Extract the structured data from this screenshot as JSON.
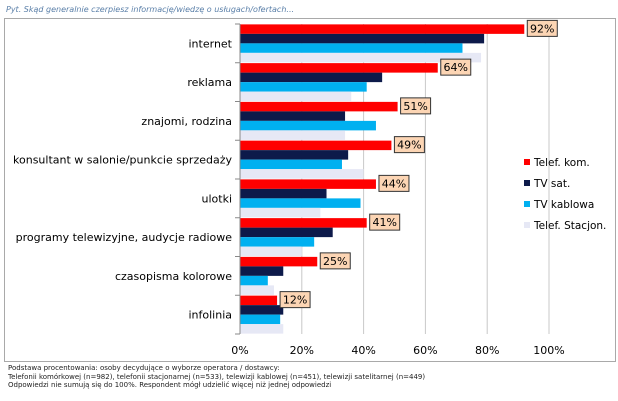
{
  "question": "Pyt. Skąd generalnie czerpiesz informację/wiedzę o usługach/ofertach...",
  "chart_data": {
    "type": "bar",
    "orientation": "horizontal",
    "categories": [
      "internet",
      "reklama",
      "znajomi, rodzina",
      "konsultant w salonie/punkcie  sprzedaży",
      "ulotki",
      "programy telewizyjne,  audycje radiowe",
      "czasopisma kolorowe",
      "infolinia"
    ],
    "series": [
      {
        "name": "Telef. kom.",
        "color": "#ff0000",
        "values": [
          92,
          64,
          51,
          49,
          44,
          41,
          25,
          12
        ]
      },
      {
        "name": "TV sat.",
        "color": "#0d1a4a",
        "values": [
          79,
          46,
          34,
          35,
          28,
          30,
          14,
          14
        ]
      },
      {
        "name": "TV kablowa",
        "color": "#00b0f0",
        "values": [
          72,
          41,
          44,
          33,
          39,
          24,
          9,
          13
        ]
      },
      {
        "name": "Telef. Stacjon.",
        "color": "#e6e8f5",
        "values": [
          78,
          36,
          34,
          40,
          26,
          20,
          11,
          14
        ]
      }
    ],
    "data_labels": [
      "92%",
      "64%",
      "51%",
      "49%",
      "44%",
      "41%",
      "25%",
      "12%"
    ],
    "x_ticks": [
      "0%",
      "20%",
      "40%",
      "60%",
      "80%",
      "100%"
    ],
    "xlim": [
      0,
      100
    ],
    "label_color": "#fcd5b4",
    "legend_position": "right",
    "title": "",
    "xlabel": "",
    "ylabel": ""
  },
  "notes": [
    "Podstawa procentowania: osoby decydujące  o wyborze operatora / dostawcy:",
    "Telefonii komórkowej (n=982), telefonii stacjonarnej (n=533), telewizji kablowej (n=451), telewizji satelitarnej (n=449)",
    "Odpowiedzi nie sumują się do 100%. Respondent mógł udzielić więcej niż jednej odpowiedzi"
  ]
}
